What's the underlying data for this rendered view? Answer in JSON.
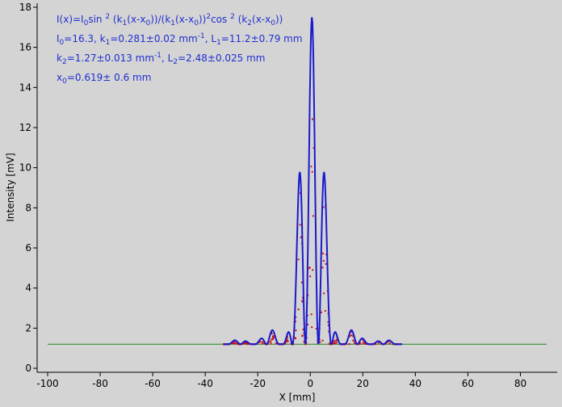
{
  "chart_data": {
    "type": "scatter",
    "xlabel": "X [mm]",
    "ylabel": "Intensity [mV]",
    "xlim": [
      -104,
      94
    ],
    "ylim": [
      -0.2,
      18.2
    ],
    "x_ticks": [
      -100,
      -80,
      -60,
      -40,
      -20,
      0,
      20,
      40,
      60,
      80
    ],
    "y_ticks": [
      0,
      2,
      4,
      6,
      8,
      10,
      12,
      14,
      16,
      18
    ],
    "grid": false,
    "baseline": 1.2,
    "fit_params": {
      "I0": 16.3,
      "k1": 0.281,
      "k2": 1.27,
      "x0": 0.619,
      "offset": 1.2,
      "peak": 17.5
    },
    "annotation": {
      "line1": "I(x)=I0sin 2 (k1(x-x0))/(k1(x-x0))2cos 2 (k2(x-x0))",
      "line2": "I0=16.3,  k1=0.281±0.02 mm-1,   L1=11.2±0.79 mm",
      "line3": "k2=1.27±0.013 mm-1,   L2=2.48±0.025 mm",
      "line4": "x0=0.619±  0.6 mm"
    },
    "series": [
      {
        "role": "fit",
        "color": "#1a1acf",
        "x_range": [
          -33,
          35
        ]
      },
      {
        "role": "data",
        "color": "#cc1111",
        "x_range": [
          -33,
          35
        ]
      },
      {
        "role": "background",
        "color": "#1a8a1a",
        "x_range": [
          -100,
          90
        ]
      }
    ]
  }
}
